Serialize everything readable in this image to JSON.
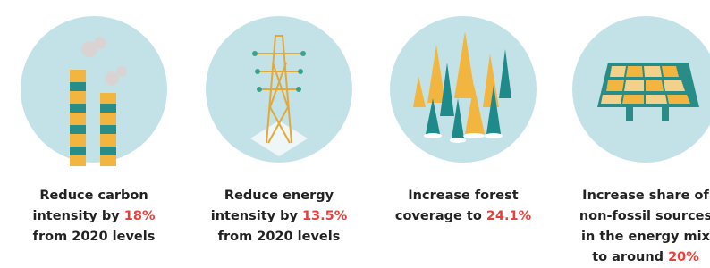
{
  "items": [
    {
      "lines": [
        [
          "Reduce carbon"
        ],
        [
          "intensity by",
          "18%"
        ],
        [
          "from 2020 levels"
        ]
      ]
    },
    {
      "lines": [
        [
          "Reduce energy"
        ],
        [
          "intensity by",
          "13.5%"
        ],
        [
          "from 2020 levels"
        ]
      ]
    },
    {
      "lines": [
        [
          "Increase forest"
        ],
        [
          "coverage to",
          "24.1%"
        ]
      ]
    },
    {
      "lines": [
        [
          "Increase share of"
        ],
        [
          "non-fossil sources"
        ],
        [
          "in the energy mix"
        ],
        [
          "to around",
          "20%"
        ]
      ]
    }
  ]
}
